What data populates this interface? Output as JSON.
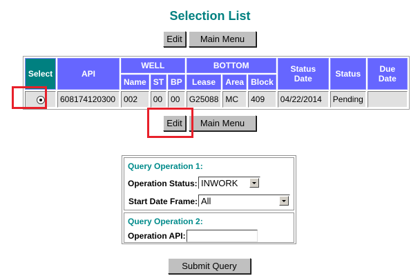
{
  "title": "Selection List",
  "buttons": {
    "edit": "Edit",
    "main_menu": "Main Menu",
    "submit": "Submit Query"
  },
  "table": {
    "headers": {
      "select": "Select",
      "api": "API",
      "well": "WELL",
      "bottom": "BOTTOM",
      "status_date": "Status Date",
      "status": "Status",
      "due_date": "Due Date",
      "name": "Name",
      "st": "ST",
      "bp": "BP",
      "lease": "Lease",
      "area": "Area",
      "block": "Block"
    },
    "rows": [
      {
        "selected": true,
        "api": "608174120300",
        "name": "002",
        "st": "00",
        "bp": "00",
        "lease": "G25088",
        "area": "MC",
        "block": "409",
        "status_date": "04/22/2014",
        "status": "Pending",
        "due_date": ""
      }
    ]
  },
  "query": {
    "op1_title": "Query Operation 1:",
    "op_status_label": "Operation Status:",
    "op_status_value": "INWORK",
    "start_date_label": "Start Date Frame:",
    "start_date_value": "All",
    "op2_title": "Query Operation 2:",
    "op_api_label": "Operation API:",
    "op_api_value": ""
  },
  "colors": {
    "title": "#008080",
    "header": "#6666ff",
    "select_header": "#008080",
    "highlight": "#e8202a"
  }
}
